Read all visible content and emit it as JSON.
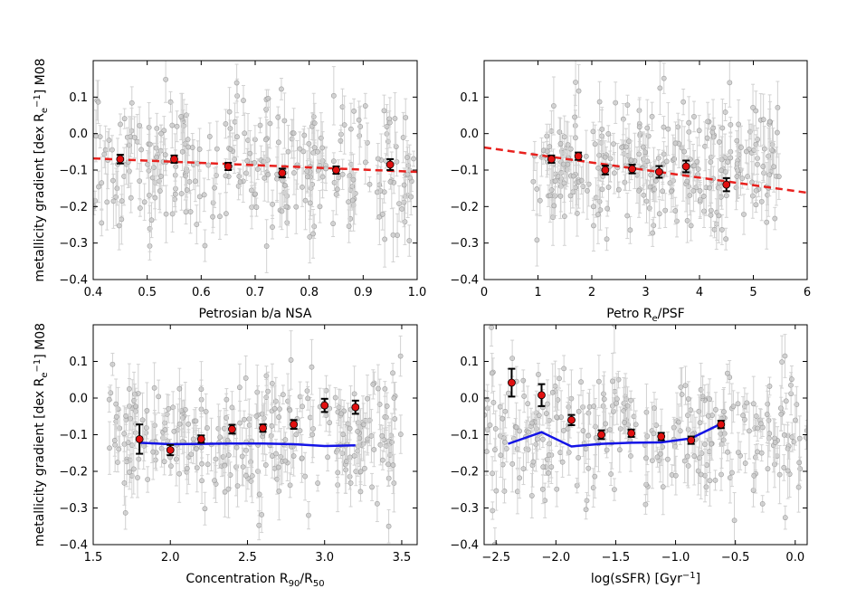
{
  "chart_data": [
    {
      "type": "scatter",
      "xlabel": "Petrosian b/a NSA",
      "ylabel": "metallicity gradient [dex R_e^-1] M08",
      "xlim": [
        0.4,
        1.0
      ],
      "ylim": [
        -0.4,
        0.2
      ],
      "xticks": [
        "0.4",
        "0.5",
        "0.6",
        "0.7",
        "0.8",
        "0.9",
        "1.0"
      ],
      "yticks": [
        "−0.4",
        "−0.3",
        "−0.2",
        "−0.1",
        "0.0",
        "0.1"
      ],
      "binned_points": [
        {
          "x": 0.45,
          "y": -0.07,
          "err": 0.012
        },
        {
          "x": 0.55,
          "y": -0.07,
          "err": 0.01
        },
        {
          "x": 0.65,
          "y": -0.09,
          "err": 0.01
        },
        {
          "x": 0.75,
          "y": -0.108,
          "err": 0.012
        },
        {
          "x": 0.85,
          "y": -0.1,
          "err": 0.01
        },
        {
          "x": 0.95,
          "y": -0.085,
          "err": 0.015
        }
      ],
      "fit_line": {
        "style": "dashed",
        "color": "#e8211e",
        "x": [
          0.4,
          1.0
        ],
        "y": [
          -0.068,
          -0.105
        ]
      },
      "scatter": {
        "n": 300,
        "x_range": [
          0.4,
          1.0
        ],
        "y_center": -0.09,
        "y_spread": 0.09
      }
    },
    {
      "type": "scatter",
      "xlabel": "Petro R_e/PSF",
      "ylabel": "",
      "xlim": [
        0,
        6
      ],
      "ylim": [
        -0.4,
        0.2
      ],
      "xticks": [
        "0",
        "1",
        "2",
        "3",
        "4",
        "5",
        "6"
      ],
      "yticks": [
        "−0.4",
        "−0.3",
        "−0.2",
        "−0.1",
        "0.0",
        "0.1"
      ],
      "binned_points": [
        {
          "x": 1.25,
          "y": -0.07,
          "err": 0.01
        },
        {
          "x": 1.75,
          "y": -0.062,
          "err": 0.01
        },
        {
          "x": 2.25,
          "y": -0.1,
          "err": 0.012
        },
        {
          "x": 2.75,
          "y": -0.097,
          "err": 0.012
        },
        {
          "x": 3.25,
          "y": -0.105,
          "err": 0.016
        },
        {
          "x": 3.75,
          "y": -0.09,
          "err": 0.016
        },
        {
          "x": 4.5,
          "y": -0.14,
          "err": 0.018
        }
      ],
      "fit_line": {
        "style": "dashed",
        "color": "#e8211e",
        "x": [
          0,
          6
        ],
        "y": [
          -0.038,
          -0.162
        ]
      },
      "scatter": {
        "n": 300,
        "x_range": [
          0.9,
          5.5
        ],
        "y_center": -0.1,
        "y_spread": 0.09
      }
    },
    {
      "type": "scatter",
      "xlabel": "Concentration R_90/R_50",
      "ylabel": "metallicity gradient [dex R_e^-1] M08",
      "xlim": [
        1.5,
        3.6
      ],
      "ylim": [
        -0.4,
        0.2
      ],
      "xticks": [
        "1.5",
        "2.0",
        "2.5",
        "3.0",
        "3.5"
      ],
      "yticks": [
        "−0.4",
        "−0.3",
        "−0.2",
        "−0.1",
        "0.0",
        "0.1"
      ],
      "binned_points": [
        {
          "x": 1.8,
          "y": -0.112,
          "err": 0.04
        },
        {
          "x": 2.0,
          "y": -0.142,
          "err": 0.014
        },
        {
          "x": 2.2,
          "y": -0.112,
          "err": 0.01
        },
        {
          "x": 2.4,
          "y": -0.085,
          "err": 0.012
        },
        {
          "x": 2.6,
          "y": -0.082,
          "err": 0.01
        },
        {
          "x": 2.8,
          "y": -0.072,
          "err": 0.012
        },
        {
          "x": 3.0,
          "y": -0.02,
          "err": 0.018
        },
        {
          "x": 3.2,
          "y": -0.025,
          "err": 0.018
        }
      ],
      "model_line": {
        "color": "#1414e6",
        "x": [
          1.8,
          2.0,
          2.2,
          2.4,
          2.6,
          2.8,
          3.0,
          3.2
        ],
        "y": [
          -0.122,
          -0.126,
          -0.125,
          -0.124,
          -0.124,
          -0.126,
          -0.131,
          -0.129
        ]
      },
      "scatter": {
        "n": 300,
        "x_range": [
          1.6,
          3.5
        ],
        "y_center": -0.1,
        "y_spread": 0.09
      }
    },
    {
      "type": "scatter",
      "xlabel": "log(sSFR) [Gyr^-1]",
      "ylabel": "",
      "xlim": [
        -2.6,
        0.1
      ],
      "ylim": [
        -0.4,
        0.2
      ],
      "xticks": [
        "−2.5",
        "−2.0",
        "−1.5",
        "−1.0",
        "−0.5",
        "0.0"
      ],
      "yticks": [
        "−0.4",
        "−0.3",
        "−0.2",
        "−0.1",
        "0.0",
        "0.1"
      ],
      "binned_points": [
        {
          "x": -2.37,
          "y": 0.042,
          "err": 0.038
        },
        {
          "x": -2.12,
          "y": 0.008,
          "err": 0.03
        },
        {
          "x": -1.87,
          "y": -0.06,
          "err": 0.014
        },
        {
          "x": -1.62,
          "y": -0.1,
          "err": 0.012
        },
        {
          "x": -1.37,
          "y": -0.096,
          "err": 0.01
        },
        {
          "x": -1.12,
          "y": -0.105,
          "err": 0.01
        },
        {
          "x": -0.87,
          "y": -0.115,
          "err": 0.01
        },
        {
          "x": -0.62,
          "y": -0.072,
          "err": 0.01
        }
      ],
      "model_line": {
        "color": "#1414e6",
        "x": [
          -2.4,
          -2.12,
          -1.87,
          -1.62,
          -1.37,
          -1.12,
          -0.87,
          -0.62
        ],
        "y": [
          -0.125,
          -0.093,
          -0.132,
          -0.125,
          -0.122,
          -0.121,
          -0.11,
          -0.07
        ]
      },
      "scatter": {
        "n": 300,
        "x_range": [
          -2.6,
          0.1
        ],
        "y_center": -0.1,
        "y_spread": 0.09
      }
    }
  ],
  "colors": {
    "scatter_fill": "#c8c8c8",
    "scatter_edge": "#9a9a9a",
    "scatter_err": "#d2d2d2",
    "binned_fill": "#e01010",
    "binned_err": "#000000"
  }
}
